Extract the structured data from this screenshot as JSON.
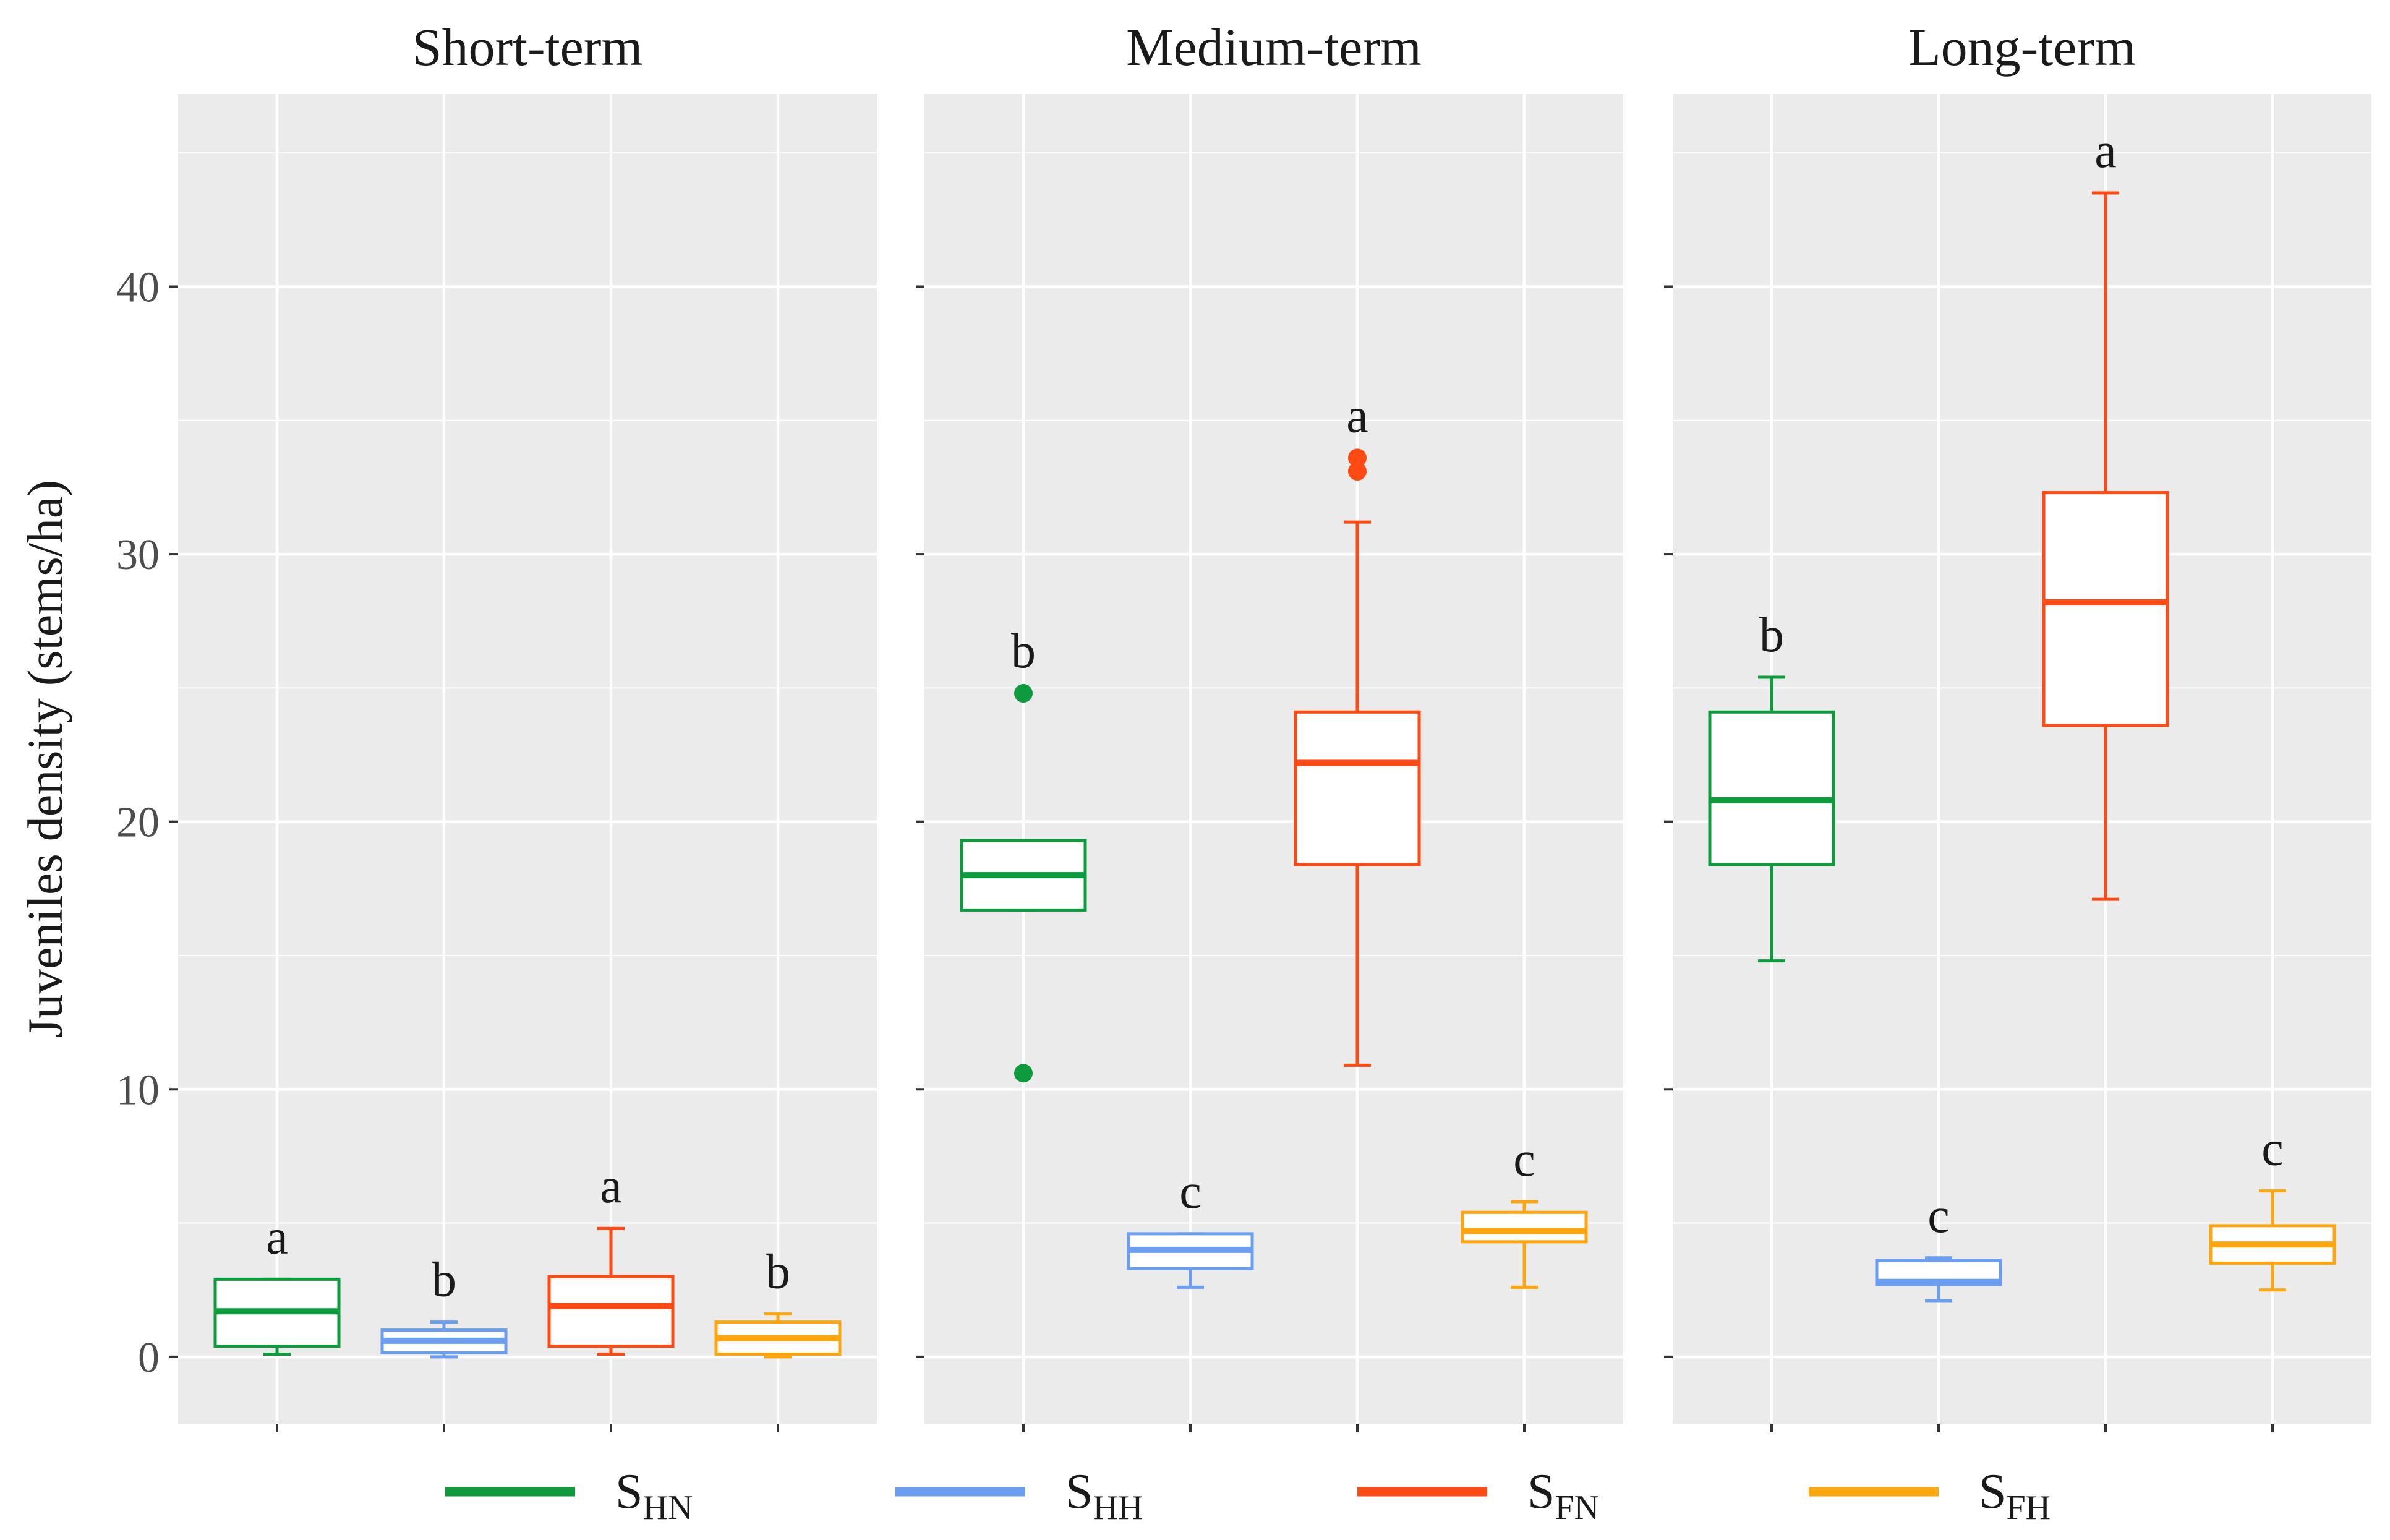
{
  "chart_data": {
    "type": "boxplot",
    "ylabel": "Juveniles density (stems/ha)",
    "xlabel": "",
    "ylim": [
      -2.5,
      47.2
    ],
    "yticks": [
      0,
      10,
      20,
      30,
      40
    ],
    "yticks_label": [
      "0",
      "10",
      "20",
      "30",
      "40"
    ],
    "grid": true,
    "legend_position": "bottom",
    "colors": {
      "SHN": "#0e9b3e",
      "SHH": "#6b9ef0",
      "SFN": "#ff4a14",
      "SFH": "#ffa50e"
    },
    "groups": [
      {
        "key": "SHN",
        "base": "S",
        "sub": "HN"
      },
      {
        "key": "SHH",
        "base": "S",
        "sub": "HH"
      },
      {
        "key": "SFN",
        "base": "S",
        "sub": "FN"
      },
      {
        "key": "SFH",
        "base": "S",
        "sub": "FH"
      }
    ],
    "panels": [
      {
        "title": "Short-term",
        "boxes": [
          {
            "group": "SHN",
            "min": 0.1,
            "q1": 0.4,
            "median": 1.7,
            "q3": 2.9,
            "max": 2.9,
            "outliers": [],
            "letter": "a"
          },
          {
            "group": "SHH",
            "min": 0.0,
            "q1": 0.15,
            "median": 0.6,
            "q3": 1.0,
            "max": 1.3,
            "outliers": [],
            "letter": "b"
          },
          {
            "group": "SFN",
            "min": 0.1,
            "q1": 0.4,
            "median": 1.9,
            "q3": 3.0,
            "max": 4.8,
            "outliers": [],
            "letter": "a"
          },
          {
            "group": "SFH",
            "min": 0.0,
            "q1": 0.1,
            "median": 0.7,
            "q3": 1.3,
            "max": 1.6,
            "outliers": [],
            "letter": "b"
          }
        ]
      },
      {
        "title": "Medium-term",
        "boxes": [
          {
            "group": "SHN",
            "min": 16.7,
            "q1": 16.7,
            "median": 18.0,
            "q3": 19.3,
            "max": 19.3,
            "outliers": [
              24.8,
              10.6
            ],
            "letter": "b"
          },
          {
            "group": "SHH",
            "min": 2.6,
            "q1": 3.3,
            "median": 4.0,
            "q3": 4.6,
            "max": 4.6,
            "outliers": [],
            "letter": "c"
          },
          {
            "group": "SFN",
            "min": 10.9,
            "q1": 18.4,
            "median": 22.2,
            "q3": 24.1,
            "max": 31.2,
            "outliers": [
              33.6,
              33.1
            ],
            "letter": "a"
          },
          {
            "group": "SFH",
            "min": 2.6,
            "q1": 4.3,
            "median": 4.7,
            "q3": 5.4,
            "max": 5.8,
            "outliers": [],
            "letter": "c"
          }
        ]
      },
      {
        "title": "Long-term",
        "boxes": [
          {
            "group": "SHN",
            "min": 14.8,
            "q1": 18.4,
            "median": 20.8,
            "q3": 24.1,
            "max": 25.4,
            "outliers": [],
            "letter": "b"
          },
          {
            "group": "SHH",
            "min": 2.1,
            "q1": 2.7,
            "median": 2.8,
            "q3": 3.6,
            "max": 3.7,
            "outliers": [],
            "letter": "c"
          },
          {
            "group": "SFN",
            "min": 17.1,
            "q1": 23.6,
            "median": 28.2,
            "q3": 32.3,
            "max": 43.5,
            "outliers": [],
            "letter": "a"
          },
          {
            "group": "SFH",
            "min": 2.5,
            "q1": 3.5,
            "median": 4.2,
            "q3": 4.9,
            "max": 6.2,
            "outliers": [],
            "letter": "c"
          }
        ]
      }
    ]
  }
}
